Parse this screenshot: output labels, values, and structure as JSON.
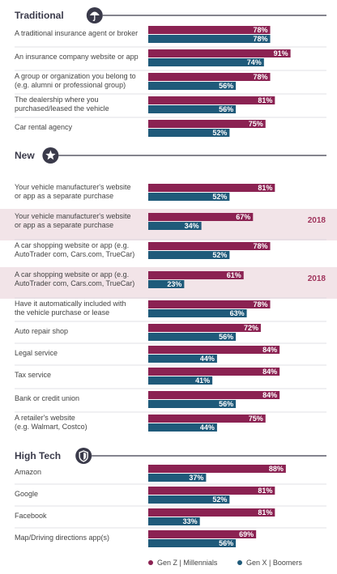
{
  "colors": {
    "genz_millennials": "#8b2252",
    "genx_boomers": "#1f5a7a",
    "highlight": "#f2e4e8",
    "divider": "#d6d6dc",
    "heading_line": "#3a3a4a",
    "year_text": "#a0345c"
  },
  "chart_data": {
    "type": "bar",
    "orientation": "horizontal",
    "xlim": [
      0,
      100
    ],
    "unit": "%",
    "legend_position": "bottom-right",
    "series": [
      {
        "name": "Gen Z | Millennials"
      },
      {
        "name": "Gen X | Boomers"
      }
    ],
    "sections": [
      {
        "title": "Traditional",
        "icon": "umbrella-icon",
        "rows": [
          {
            "label": [
              "A traditional insurance agent or broker"
            ],
            "values": [
              78,
              78
            ]
          },
          {
            "label": [
              "An insurance company website or app"
            ],
            "values": [
              91,
              74
            ]
          },
          {
            "label": [
              "A group or organization you belong to",
              "(e.g. alumni or professional group)"
            ],
            "values": [
              78,
              56
            ]
          },
          {
            "label": [
              "The dealership where you",
              "purchased/leased the vehicle"
            ],
            "values": [
              81,
              56
            ]
          },
          {
            "label": [
              "Car rental agency"
            ],
            "values": [
              75,
              52
            ]
          }
        ]
      },
      {
        "title": "New",
        "icon": "star-icon",
        "rows": [
          {
            "label": [
              "Your vehicle manufacturer's website",
              "or app as a separate purchase"
            ],
            "values": [
              81,
              52
            ]
          },
          {
            "label": [
              "Your vehicle manufacturer's website",
              "or app as a separate purchase"
            ],
            "values": [
              67,
              34
            ],
            "year": "2018",
            "highlight": true
          },
          {
            "label": [
              "A car shopping website or app (e.g.",
              "AutoTrader com, Cars.com, TrueCar)"
            ],
            "values": [
              78,
              52
            ]
          },
          {
            "label": [
              "A car shopping website or app (e.g.",
              "AutoTrader com, Cars.com, TrueCar)"
            ],
            "values": [
              61,
              23
            ],
            "year": "2018",
            "highlight": true
          },
          {
            "label": [
              "Have it automatically included with",
              "the vehicle purchase or lease"
            ],
            "values": [
              78,
              63
            ]
          },
          {
            "label": [
              "Auto repair shop"
            ],
            "values": [
              72,
              56
            ]
          },
          {
            "label": [
              "Legal service"
            ],
            "values": [
              84,
              44
            ]
          },
          {
            "label": [
              "Tax service"
            ],
            "values": [
              84,
              41
            ]
          },
          {
            "label": [
              "Bank or credit union"
            ],
            "values": [
              84,
              56
            ]
          },
          {
            "label": [
              "A retailer's website",
              "(e.g. Walmart, Costco)"
            ],
            "values": [
              75,
              44
            ]
          }
        ]
      },
      {
        "title": "High Tech",
        "icon": "shield-icon",
        "rows": [
          {
            "label": [
              "Amazon"
            ],
            "values": [
              88,
              37
            ]
          },
          {
            "label": [
              "Google"
            ],
            "values": [
              81,
              52
            ]
          },
          {
            "label": [
              "Facebook"
            ],
            "values": [
              81,
              33
            ]
          },
          {
            "label": [
              "Map/Driving directions app(s)"
            ],
            "values": [
              69,
              56
            ]
          }
        ]
      }
    ]
  }
}
